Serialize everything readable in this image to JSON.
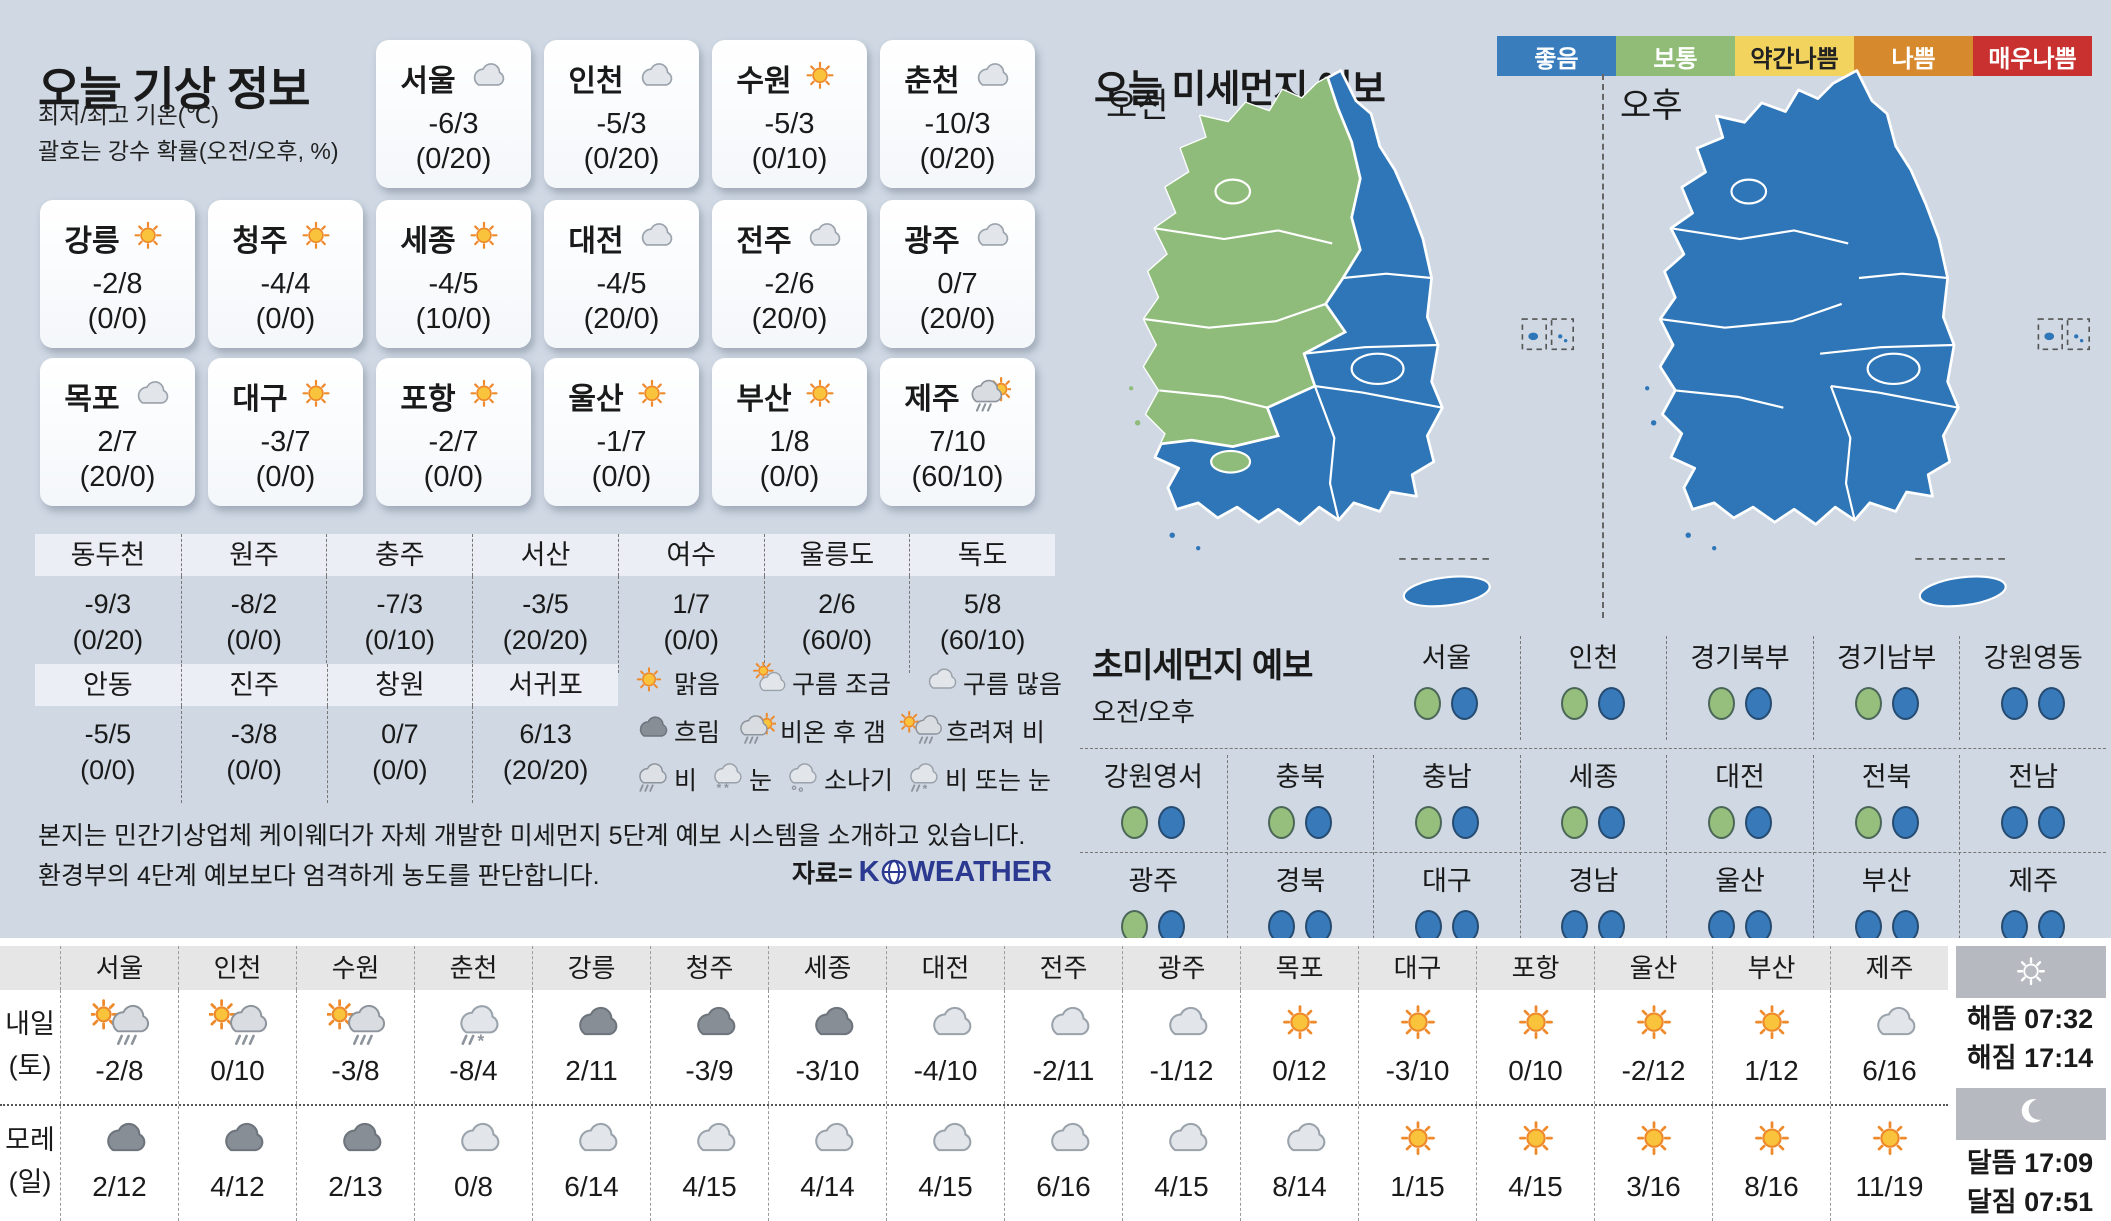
{
  "left": {
    "title": "오늘 기상 정보",
    "subtitle1": "최저/최고 기온(℃)",
    "subtitle2": "괄호는 강수 확률(오전/오후, %)",
    "cards_row1": [
      {
        "city": "서울",
        "icon": "cloud",
        "temp": "-6/3",
        "rain": "(0/20)"
      },
      {
        "city": "인천",
        "icon": "cloud",
        "temp": "-5/3",
        "rain": "(0/20)"
      },
      {
        "city": "수원",
        "icon": "sun",
        "temp": "-5/3",
        "rain": "(0/10)"
      },
      {
        "city": "춘천",
        "icon": "cloud",
        "temp": "-10/3",
        "rain": "(0/20)"
      }
    ],
    "cards_row2": [
      {
        "city": "강릉",
        "icon": "sun",
        "temp": "-2/8",
        "rain": "(0/0)"
      },
      {
        "city": "청주",
        "icon": "sun",
        "temp": "-4/4",
        "rain": "(0/0)"
      },
      {
        "city": "세종",
        "icon": "sun",
        "temp": "-4/5",
        "rain": "(10/0)"
      },
      {
        "city": "대전",
        "icon": "cloud",
        "temp": "-4/5",
        "rain": "(20/0)"
      },
      {
        "city": "전주",
        "icon": "cloud",
        "temp": "-2/6",
        "rain": "(20/0)"
      },
      {
        "city": "광주",
        "icon": "cloud",
        "temp": "0/7",
        "rain": "(20/0)"
      }
    ],
    "cards_row3": [
      {
        "city": "목포",
        "icon": "cloud",
        "temp": "2/7",
        "rain": "(20/0)"
      },
      {
        "city": "대구",
        "icon": "sun",
        "temp": "-3/7",
        "rain": "(0/0)"
      },
      {
        "city": "포항",
        "icon": "sun",
        "temp": "-2/7",
        "rain": "(0/0)"
      },
      {
        "city": "울산",
        "icon": "sun",
        "temp": "-1/7",
        "rain": "(0/0)"
      },
      {
        "city": "부산",
        "icon": "sun",
        "temp": "1/8",
        "rain": "(0/0)"
      },
      {
        "city": "제주",
        "icon": "rain-sun",
        "temp": "7/10",
        "rain": "(60/10)"
      }
    ],
    "table1": [
      {
        "name": "동두천",
        "temp": "-9/3",
        "rain": "(0/20)"
      },
      {
        "name": "원주",
        "temp": "-8/2",
        "rain": "(0/0)"
      },
      {
        "name": "충주",
        "temp": "-7/3",
        "rain": "(0/10)"
      },
      {
        "name": "서산",
        "temp": "-3/5",
        "rain": "(20/20)"
      },
      {
        "name": "여수",
        "temp": "1/7",
        "rain": "(0/0)"
      },
      {
        "name": "울릉도",
        "temp": "2/6",
        "rain": "(60/0)"
      },
      {
        "name": "독도",
        "temp": "5/8",
        "rain": "(60/10)"
      }
    ],
    "table2": [
      {
        "name": "안동",
        "temp": "-5/5",
        "rain": "(0/0)"
      },
      {
        "name": "진주",
        "temp": "-3/8",
        "rain": "(0/0)"
      },
      {
        "name": "창원",
        "temp": "0/7",
        "rain": "(0/0)"
      },
      {
        "name": "서귀포",
        "temp": "6/13",
        "rain": "(20/20)"
      }
    ],
    "legend_rows": [
      [
        {
          "icon": "sun",
          "label": "맑음"
        },
        {
          "icon": "sun-cloud",
          "label": "구름 조금"
        },
        {
          "icon": "cloud",
          "label": "구름 많음"
        }
      ],
      [
        {
          "icon": "cloud-dark",
          "label": "흐림"
        },
        {
          "icon": "rain-sun",
          "label": "비온 후 갬"
        },
        {
          "icon": "sun-rain",
          "label": "흐려져 비"
        }
      ],
      [
        {
          "icon": "rain",
          "label": "비"
        },
        {
          "icon": "snow",
          "label": "눈"
        },
        {
          "icon": "shower",
          "label": "소나기"
        },
        {
          "icon": "rain-snow",
          "label": "비 또는 눈"
        }
      ]
    ],
    "footer_line1": "본지는 민간기상업체 케이웨더가 자체 개발한 미세먼지 5단계 예보 시스템을 소개하고 있습니다.",
    "footer_line2": "환경부의 4단계 예보보다 엄격하게 농도를 판단합니다.",
    "source_label": "자료=",
    "brand_k": "K",
    "brand_weather": "WEATHER"
  },
  "right": {
    "title": "오늘 미세먼지 예보",
    "scale": [
      {
        "label": "좋음",
        "color": "#3a7dbd",
        "text": "#ffffff"
      },
      {
        "label": "보통",
        "color": "#90bc78",
        "text": "#ffffff"
      },
      {
        "label": "약간나쁨",
        "color": "#f1d35e",
        "text": "#222222"
      },
      {
        "label": "나쁨",
        "color": "#d78a2d",
        "text": "#ffffff"
      },
      {
        "label": "매우나쁨",
        "color": "#c93030",
        "text": "#ffffff"
      }
    ],
    "map_colors": {
      "good_blue": "#2e76b7",
      "normal_green": "#8fbc7a"
    },
    "map_am_label": "오전",
    "map_pm_label": "오후",
    "dust": {
      "title": "초미세먼지 예보",
      "sublabel": "오전/오후",
      "rows": [
        [
          {
            "name": "서울",
            "am": "green",
            "pm": "blue"
          },
          {
            "name": "인천",
            "am": "green",
            "pm": "blue"
          },
          {
            "name": "경기북부",
            "am": "green",
            "pm": "blue"
          },
          {
            "name": "경기남부",
            "am": "green",
            "pm": "blue"
          },
          {
            "name": "강원영동",
            "am": "blue",
            "pm": "blue"
          }
        ],
        [
          {
            "name": "강원영서",
            "am": "green",
            "pm": "blue"
          },
          {
            "name": "충북",
            "am": "green",
            "pm": "blue"
          },
          {
            "name": "충남",
            "am": "green",
            "pm": "blue"
          },
          {
            "name": "세종",
            "am": "green",
            "pm": "blue"
          },
          {
            "name": "대전",
            "am": "green",
            "pm": "blue"
          },
          {
            "name": "전북",
            "am": "green",
            "pm": "blue"
          },
          {
            "name": "전남",
            "am": "blue",
            "pm": "blue"
          }
        ],
        [
          {
            "name": "광주",
            "am": "green",
            "pm": "blue"
          },
          {
            "name": "경북",
            "am": "blue",
            "pm": "blue"
          },
          {
            "name": "대구",
            "am": "blue",
            "pm": "blue"
          },
          {
            "name": "경남",
            "am": "blue",
            "pm": "blue"
          },
          {
            "name": "울산",
            "am": "blue",
            "pm": "blue"
          },
          {
            "name": "부산",
            "am": "blue",
            "pm": "blue"
          },
          {
            "name": "제주",
            "am": "blue",
            "pm": "blue"
          }
        ]
      ]
    }
  },
  "bottom": {
    "cities": [
      "서울",
      "인천",
      "수원",
      "춘천",
      "강릉",
      "청주",
      "세종",
      "대전",
      "전주",
      "광주",
      "목포",
      "대구",
      "포항",
      "울산",
      "부산",
      "제주"
    ],
    "rows": [
      {
        "label": "내일",
        "sub": "(토)",
        "icons": [
          "sun-rain",
          "sun-rain",
          "sun-rain",
          "rain-snow",
          "cloud-dark",
          "cloud-dark",
          "cloud-dark",
          "cloud",
          "cloud",
          "cloud",
          "sun",
          "sun",
          "sun",
          "sun",
          "sun",
          "cloud"
        ],
        "temps": [
          "-2/8",
          "0/10",
          "-3/8",
          "-8/4",
          "2/11",
          "-3/9",
          "-3/10",
          "-4/10",
          "-2/11",
          "-1/12",
          "0/12",
          "-3/10",
          "0/10",
          "-2/12",
          "1/12",
          "6/16"
        ]
      },
      {
        "label": "모레",
        "sub": "(일)",
        "icons": [
          "cloud-dark",
          "cloud-dark",
          "cloud-dark",
          "cloud",
          "cloud",
          "cloud",
          "cloud",
          "cloud",
          "cloud",
          "cloud",
          "cloud",
          "sun",
          "sun",
          "sun",
          "sun",
          "sun"
        ],
        "temps": [
          "2/12",
          "4/12",
          "2/13",
          "0/8",
          "6/14",
          "4/15",
          "4/14",
          "4/15",
          "6/16",
          "4/15",
          "8/14",
          "1/15",
          "4/15",
          "3/16",
          "8/16",
          "11/19"
        ]
      }
    ],
    "sun": {
      "rise_label": "해뜸",
      "rise": "07:32",
      "set_label": "해짐",
      "set": "17:14"
    },
    "moon": {
      "rise_label": "달뜸",
      "rise": "17:09",
      "set_label": "달짐",
      "set": "07:51"
    }
  }
}
